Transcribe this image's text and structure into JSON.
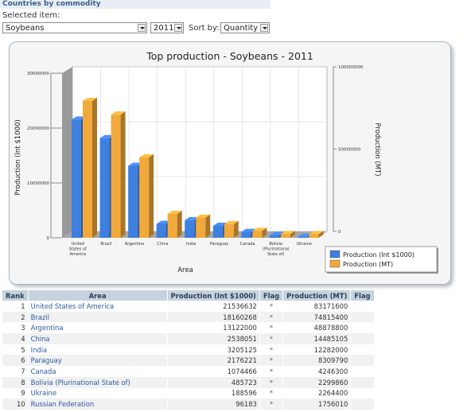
{
  "header": {
    "title": "Countries by commodity",
    "selected_label": "Selected item:"
  },
  "controls": {
    "commodity": "Soybeans",
    "year": "2011",
    "sort_label": "Sort by:",
    "sort_value": "Quantity"
  },
  "chart_data": {
    "type": "bar",
    "title": "Top production - Soybeans - 2011",
    "xlabel": "Area",
    "ylabel_left": "Production (Int $1000)",
    "ylabel_right": "Production (MT)",
    "ylim_left": [
      0,
      30000000
    ],
    "ylim_right": [
      0,
      100000000
    ],
    "yticks_left": [
      "0",
      "10000000",
      "20000000",
      "30000000"
    ],
    "yticks_right": [
      "0",
      "50000000",
      "100000000"
    ],
    "categories": [
      "United States of America",
      "Brazil",
      "Argentina",
      "China",
      "India",
      "Paraguay",
      "Canada",
      "Bolivia (Plurinational State of)",
      "Ukraine"
    ],
    "category_labels": [
      [
        "United",
        "States of",
        "America"
      ],
      [
        "Brazil"
      ],
      [
        "Argentina"
      ],
      [
        "China"
      ],
      [
        "India"
      ],
      [
        "Paraguay"
      ],
      [
        "Canada"
      ],
      [
        "Bolivia",
        "(Plurinational",
        "State of)"
      ],
      [
        "Ukraine"
      ]
    ],
    "series": [
      {
        "name": "Production (Int $1000)",
        "axis": "left",
        "color": "#3f7fe0",
        "values": [
          21536632,
          18160268,
          13122000,
          2538051,
          3205125,
          2176221,
          1074466,
          485723,
          188596
        ]
      },
      {
        "name": "Production (MT)",
        "axis": "right",
        "color": "#f2a93b",
        "values": [
          83171600,
          74815400,
          48878800,
          14485105,
          12282000,
          8309790,
          4246300,
          2299860,
          2264400
        ]
      }
    ],
    "grid": true,
    "legend": "bottom-right"
  },
  "table": {
    "headers": [
      "Rank",
      "Area",
      "Production (Int $1000)",
      "Flag",
      "Production (MT)",
      "Flag"
    ],
    "rows": [
      {
        "rank": "1",
        "area": "United States of America",
        "int": "21536632",
        "flag1": "*",
        "mt": "83171600",
        "flag2": ""
      },
      {
        "rank": "2",
        "area": "Brazil",
        "int": "18160268",
        "flag1": "*",
        "mt": "74815400",
        "flag2": ""
      },
      {
        "rank": "3",
        "area": "Argentina",
        "int": "13122000",
        "flag1": "*",
        "mt": "48878800",
        "flag2": ""
      },
      {
        "rank": "4",
        "area": "China",
        "int": "2538051",
        "flag1": "*",
        "mt": "14485105",
        "flag2": ""
      },
      {
        "rank": "5",
        "area": "India",
        "int": "3205125",
        "flag1": "*",
        "mt": "12282000",
        "flag2": ""
      },
      {
        "rank": "6",
        "area": "Paraguay",
        "int": "2176221",
        "flag1": "*",
        "mt": "8309790",
        "flag2": ""
      },
      {
        "rank": "7",
        "area": "Canada",
        "int": "1074466",
        "flag1": "*",
        "mt": "4246300",
        "flag2": ""
      },
      {
        "rank": "8",
        "area": "Bolivia (Plurinational State of)",
        "int": "485723",
        "flag1": "*",
        "mt": "2299860",
        "flag2": ""
      },
      {
        "rank": "9",
        "area": "Ukraine",
        "int": "188596",
        "flag1": "*",
        "mt": "2264400",
        "flag2": ""
      },
      {
        "rank": "10",
        "area": "Russian Federation",
        "int": "96183",
        "flag1": "*",
        "mt": "1756010",
        "flag2": ""
      }
    ]
  }
}
